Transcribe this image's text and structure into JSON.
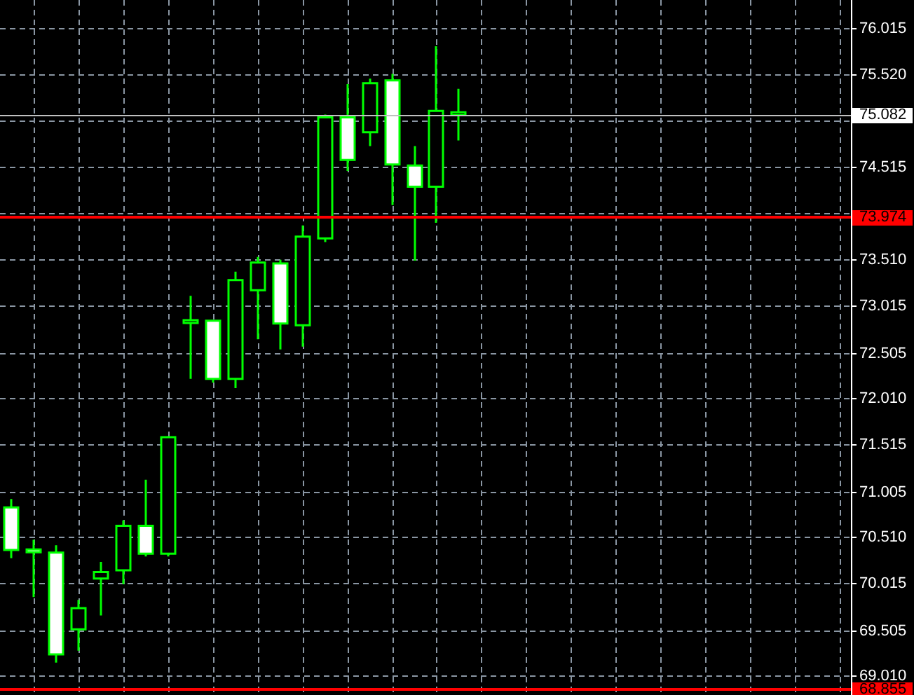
{
  "chart_data": {
    "type": "candlestick",
    "color": "#00ff00",
    "categories": [
      null,
      null,
      null,
      null,
      null,
      null,
      null,
      null,
      null,
      null,
      null,
      null,
      null,
      null,
      null,
      null,
      null,
      null,
      null,
      null,
      null,
      null,
      null,
      null,
      null,
      null,
      null,
      null,
      null,
      null,
      null,
      null,
      null,
      null,
      null,
      null,
      null,
      null
    ],
    "ohlc": [
      [
        70.83,
        70.92,
        70.28,
        70.37
      ],
      [
        70.36,
        70.48,
        69.86,
        70.35
      ],
      [
        70.34,
        70.42,
        69.15,
        69.24
      ],
      [
        69.51,
        69.83,
        69.28,
        69.74
      ],
      [
        70.06,
        70.24,
        69.66,
        70.13
      ],
      [
        70.15,
        70.69,
        70.0,
        70.63
      ],
      [
        70.63,
        71.13,
        70.3,
        70.33
      ],
      [
        70.33,
        71.6,
        70.3,
        71.59
      ],
      [
        72.83,
        73.12,
        72.22,
        72.84
      ],
      [
        72.85,
        72.85,
        72.18,
        72.22
      ],
      [
        72.22,
        73.38,
        72.12,
        73.29
      ],
      [
        73.18,
        73.54,
        72.65,
        73.48
      ],
      [
        73.47,
        73.51,
        72.54,
        72.82
      ],
      [
        72.8,
        73.88,
        72.57,
        73.76
      ],
      [
        73.74,
        75.08,
        73.7,
        75.05
      ],
      [
        75.05,
        75.41,
        74.47,
        74.59
      ],
      [
        74.89,
        75.47,
        74.74,
        75.42
      ],
      [
        75.45,
        75.52,
        74.1,
        74.54
      ],
      [
        74.53,
        74.74,
        73.5,
        74.3
      ],
      [
        74.3,
        75.82,
        73.91,
        75.12
      ],
      [
        75.09,
        75.36,
        74.8,
        75.08
      ],
      null,
      null,
      null,
      null,
      null,
      null,
      null,
      null,
      null,
      null,
      null,
      null,
      null,
      null,
      null,
      null,
      null
    ],
    "colors": [
      "#ffffff",
      "#ffffff",
      "#ffffff",
      "#000000",
      "#000000",
      "#000000",
      "#ffffff",
      "#000000",
      "#000000",
      "#ffffff",
      "#000000",
      "#000000",
      "#ffffff",
      "#000000",
      "#000000",
      "#ffffff",
      "#000000",
      "#ffffff",
      "#ffffff",
      "#000000",
      "#000000",
      null,
      null,
      null,
      null,
      null,
      null,
      null,
      null,
      null,
      null,
      null,
      null,
      null,
      null,
      null,
      null,
      null
    ],
    "ylim": [
      68.8,
      76.32
    ],
    "yticks": [
      {
        "value": 69.01,
        "label": "69.010"
      },
      69.505,
      70.015,
      {
        "value": 70.51,
        "label": "70.510"
      },
      71.005,
      71.515,
      {
        "value": 72.01,
        "label": "72.010"
      },
      72.505,
      73.015,
      {
        "value": 73.51,
        "label": "73.510"
      },
      {
        "value": 74.01,
        "label": null
      },
      74.515,
      {
        "value": 75.01,
        "label": null
      },
      {
        "value": 75.52,
        "label": "75.520"
      },
      76.015
    ],
    "ref_lines": [
      {
        "axis": "y",
        "value": 75.082,
        "label": "75.082",
        "color": "#c0c0c0"
      },
      {
        "axis": "y",
        "value": 73.974,
        "label": "73.974",
        "color": "#ff0000"
      },
      {
        "axis": "y",
        "value": 68.855,
        "label": "68.855",
        "color": "#ff0000"
      }
    ],
    "grid": true,
    "tick_labels": "y"
  }
}
